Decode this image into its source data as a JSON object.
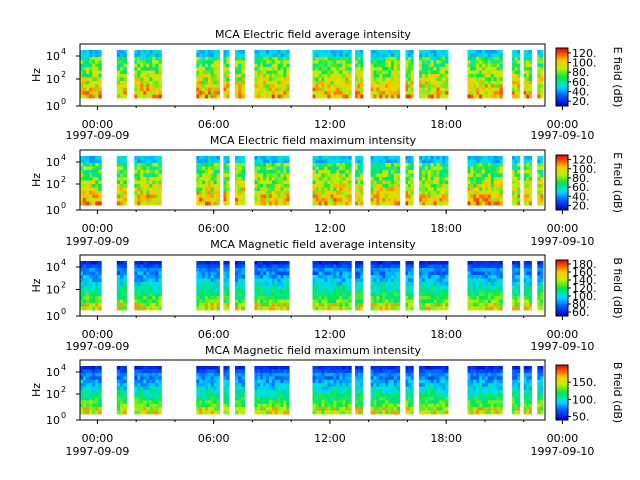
{
  "chart_data": [
    {
      "type": "heatmap",
      "title": "MCA  Electric field average intensity",
      "ylabel": "Hz",
      "y_scale": "log",
      "y_ticks": [
        {
          "base": "10",
          "exp": "0"
        },
        {
          "base": "10",
          "exp": "2"
        },
        {
          "base": "10",
          "exp": "4"
        }
      ],
      "x_ticks": [
        "00:00",
        "06:00",
        "12:00",
        "18:00",
        "00:00"
      ],
      "x_dates": [
        "1997-09-09",
        "1997-09-10"
      ],
      "colorbar_label": "E field (dB)",
      "colorbar_range": [
        10,
        130
      ],
      "colorbar_ticks": [
        "20.",
        "40.",
        "60.",
        "80.",
        "100.",
        "120."
      ],
      "colormap": "rainbow",
      "dominant_colors": [
        "#00c878",
        "#ffd200"
      ]
    },
    {
      "type": "heatmap",
      "title": "MCA  Electric field maximum intensity",
      "ylabel": "Hz",
      "y_scale": "log",
      "y_ticks": [
        {
          "base": "10",
          "exp": "0"
        },
        {
          "base": "10",
          "exp": "2"
        },
        {
          "base": "10",
          "exp": "4"
        }
      ],
      "x_ticks": [
        "00:00",
        "06:00",
        "12:00",
        "18:00",
        "00:00"
      ],
      "x_dates": [
        "1997-09-09",
        "1997-09-10"
      ],
      "colorbar_label": "E field (dB)",
      "colorbar_range": [
        10,
        130
      ],
      "colorbar_ticks": [
        "20.",
        "40.",
        "60.",
        "80.",
        "100.",
        "120."
      ],
      "colormap": "rainbow",
      "dominant_colors": [
        "#00c878",
        "#ffd200"
      ]
    },
    {
      "type": "heatmap",
      "title": "MCA  Magnetic field average intensity",
      "ylabel": "Hz",
      "y_scale": "log",
      "y_ticks": [
        {
          "base": "10",
          "exp": "0"
        },
        {
          "base": "10",
          "exp": "2"
        },
        {
          "base": "10",
          "exp": "4"
        }
      ],
      "x_ticks": [
        "00:00",
        "06:00",
        "12:00",
        "18:00",
        "00:00"
      ],
      "x_dates": [
        "1997-09-09",
        "1997-09-10"
      ],
      "colorbar_label": "B field (dB)",
      "colorbar_range": [
        50,
        190
      ],
      "colorbar_ticks": [
        "60.",
        "80.",
        "100.",
        "120.",
        "140.",
        "160.",
        "180."
      ],
      "colormap": "rainbow",
      "dominant_colors": [
        "#0000cc",
        "#00c8ff",
        "#00e650"
      ]
    },
    {
      "type": "heatmap",
      "title": "MCA  Magnetic field maximum intensity",
      "ylabel": "Hz",
      "y_scale": "log",
      "y_ticks": [
        {
          "base": "10",
          "exp": "0"
        },
        {
          "base": "10",
          "exp": "2"
        },
        {
          "base": "10",
          "exp": "4"
        }
      ],
      "x_ticks": [
        "00:00",
        "06:00",
        "12:00",
        "18:00",
        "00:00"
      ],
      "x_dates": [
        "1997-09-09",
        "1997-09-10"
      ],
      "colorbar_label": "B field (dB)",
      "colorbar_range": [
        40,
        200
      ],
      "colorbar_ticks": [
        "50.",
        "100.",
        "150."
      ],
      "colormap": "rainbow",
      "dominant_colors": [
        "#00c8ff",
        "#00e650"
      ]
    }
  ]
}
